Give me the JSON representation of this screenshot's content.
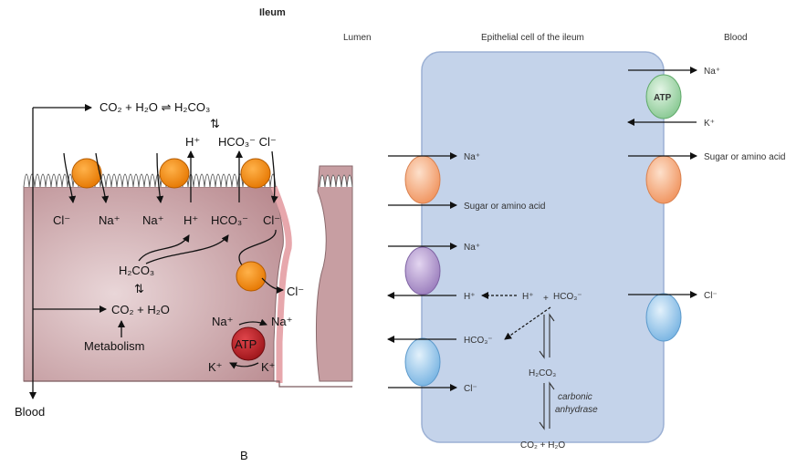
{
  "title": "Ileum",
  "figure_letter": "B",
  "left_panel": {
    "equation_top": "CO₂ + H₂O ⇌ H₂CO₃",
    "equilibrium": "⇅",
    "h_top": "H⁺",
    "hco3_cl_top": "HCO₃⁻ Cl⁻",
    "cl_1": "Cl⁻",
    "na_1": "Na⁺",
    "na_2": "Na⁺",
    "h_2": "H⁺",
    "hco3_2": "HCO₃⁻",
    "cl_2": "Cl⁻",
    "h2co3": "H₂CO₃",
    "co2_h2o": "CO₂ + H₂O",
    "metabolism": "Metabolism",
    "cl_out": "Cl⁻",
    "na_in": "Na⁺",
    "na_out": "Na⁺",
    "atp": "ATP",
    "k_in": "K⁺",
    "k_out": "K⁺",
    "blood": "Blood"
  },
  "right_panel": {
    "header_lumen": "Lumen",
    "header_cell": "Epithelial cell of the ileum",
    "header_blood": "Blood",
    "apical_na_1": "Na⁺",
    "apical_sugar": "Sugar or amino acid",
    "apical_na_2": "Na⁺",
    "apical_h": "H⁺",
    "cell_h": "H⁺",
    "cell_plus": "+",
    "cell_hco3": "HCO₃⁻",
    "apical_hco3": "HCO₃⁻",
    "apical_cl": "Cl⁻",
    "h2co3": "H₂CO₃",
    "enzyme_1": "carbonic",
    "enzyme_2": "anhydrase",
    "co2_h2o": "CO₂ + H₂O",
    "baso_na": "Na⁺",
    "baso_atp": "ATP",
    "baso_k": "K⁺",
    "baso_sugar": "Sugar or amino acid",
    "baso_cl": "Cl⁻"
  },
  "colors": {
    "orange_carrier": "#f18a1c",
    "atp_pump_left": "#c0272d",
    "cell_blue": "#c4d3ea",
    "cell_border": "#9bb0d4",
    "tissue_pink": "#d8b3b6",
    "carrier_salmon": "#f4a06f",
    "carrier_purple": "#a98bc7",
    "carrier_blue": "#8cc0e6",
    "carrier_green": "#9fd3a6"
  }
}
